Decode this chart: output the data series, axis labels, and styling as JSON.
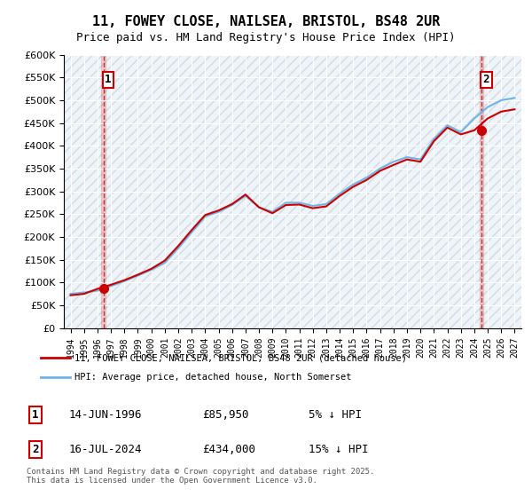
{
  "title": "11, FOWEY CLOSE, NAILSEA, BRISTOL, BS48 2UR",
  "subtitle": "Price paid vs. HM Land Registry's House Price Index (HPI)",
  "ylabel": "",
  "xlabel": "",
  "ylim": [
    0,
    600000
  ],
  "yticks": [
    0,
    50000,
    100000,
    150000,
    200000,
    250000,
    300000,
    350000,
    400000,
    450000,
    500000,
    550000,
    600000
  ],
  "ytick_labels": [
    "£0",
    "£50K",
    "£100K",
    "£150K",
    "£200K",
    "£250K",
    "£300K",
    "£350K",
    "£400K",
    "£450K",
    "£500K",
    "£550K",
    "£600K"
  ],
  "xlim_start": 1993.5,
  "xlim_end": 2027.5,
  "hpi_color": "#6eb4e8",
  "price_color": "#cc0000",
  "transaction1_x": 1996.45,
  "transaction1_y": 85950,
  "transaction1_label": "1",
  "transaction2_x": 2024.54,
  "transaction2_y": 434000,
  "transaction2_label": "2",
  "legend_line1": "11, FOWEY CLOSE, NAILSEA, BRISTOL, BS48 2UR (detached house)",
  "legend_line2": "HPI: Average price, detached house, North Somerset",
  "table_row1": [
    "1",
    "14-JUN-1996",
    "£85,950",
    "5% ↓ HPI"
  ],
  "table_row2": [
    "2",
    "16-JUL-2024",
    "£434,000",
    "15% ↓ HPI"
  ],
  "footnote": "Contains HM Land Registry data © Crown copyright and database right 2025.\nThis data is licensed under the Open Government Licence v3.0.",
  "background_color": "#ffffff",
  "plot_bg_color": "#dce9f5",
  "hatch_color": "#ffffff",
  "grid_color": "#ffffff",
  "hpi_data_years": [
    1994,
    1995,
    1996,
    1997,
    1998,
    1999,
    2000,
    2001,
    2002,
    2003,
    2004,
    2005,
    2006,
    2007,
    2008,
    2009,
    2010,
    2011,
    2012,
    2013,
    2014,
    2015,
    2016,
    2017,
    2018,
    2019,
    2020,
    2021,
    2022,
    2023,
    2024,
    2025,
    2026,
    2027
  ],
  "hpi_data_values": [
    75000,
    78000,
    82000,
    92000,
    103000,
    115000,
    128000,
    143000,
    175000,
    210000,
    245000,
    255000,
    270000,
    290000,
    265000,
    255000,
    275000,
    275000,
    268000,
    272000,
    295000,
    315000,
    330000,
    350000,
    365000,
    375000,
    370000,
    415000,
    445000,
    430000,
    460000,
    485000,
    500000,
    505000
  ],
  "price_data_years": [
    1994,
    1995,
    1996,
    1997,
    1998,
    1999,
    2000,
    2001,
    2002,
    2003,
    2004,
    2005,
    2006,
    2007,
    2008,
    2009,
    2010,
    2011,
    2012,
    2013,
    2014,
    2015,
    2016,
    2017,
    2018,
    2019,
    2020,
    2021,
    2022,
    2023,
    2024,
    2025,
    2026,
    2027
  ],
  "price_data_values": [
    72000,
    75000,
    85950,
    95000,
    105000,
    117000,
    130000,
    148000,
    180000,
    215000,
    248000,
    258000,
    272000,
    293000,
    265000,
    252000,
    270000,
    271000,
    263000,
    267000,
    290000,
    310000,
    325000,
    345000,
    358000,
    370000,
    365000,
    410000,
    440000,
    425000,
    434000,
    460000,
    475000,
    480000
  ]
}
